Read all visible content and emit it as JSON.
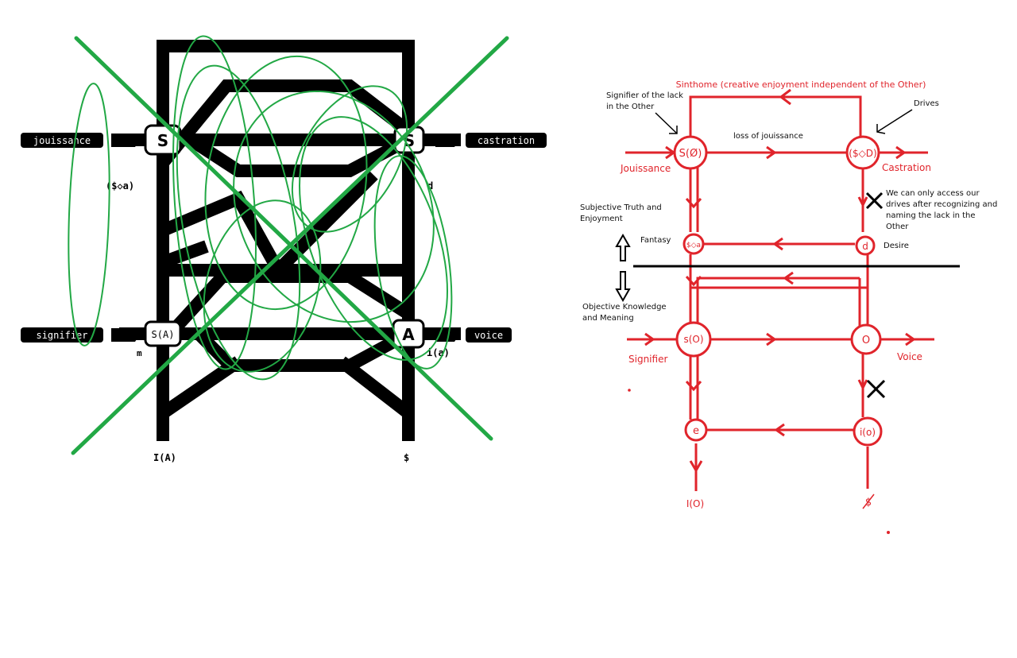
{
  "left_graph": {
    "labels": {
      "jouissance": "jouissance",
      "castration": "castration",
      "signifier": "signifier",
      "voice": "voice",
      "node_s_left": "S",
      "node_s_right": "S",
      "node_s_a": "S(A)",
      "node_a": "A",
      "fantasy_formula": "($◇a)",
      "d": "d",
      "m": "m",
      "i_a": "i(a)",
      "big_i_a": "I(A)",
      "barred_s": "$"
    }
  },
  "right_graph": {
    "sinthome": "Sinthome (creative enjoyment independent of the Other)",
    "signifier_of_lack": [
      "Signifier of the lack",
      "in the Other"
    ],
    "drives": "Drives",
    "loss_of_jouissance": "loss of jouissance",
    "node_s_barred_o": "S(Ø)",
    "node_drive_formula": "($◇D)",
    "jouissance": "Jouissance",
    "castration": "Castration",
    "drives_note": [
      "We can only access our",
      "drives after recognizing and",
      "naming the lack in the",
      "Other"
    ],
    "subjective": [
      "Subjective Truth and",
      "Enjoyment"
    ],
    "fantasy": "Fantasy",
    "node_fantasy": "$◇a",
    "node_d": "d",
    "desire": "Desire",
    "objective": [
      "Objective Knowledge",
      "and Meaning"
    ],
    "node_s_o": "s(O)",
    "node_o": "O",
    "signifier": "Signifier",
    "voice": "Voice",
    "node_e": "e",
    "node_i_o": "i(o)",
    "big_i_o": "I(O)",
    "barred_s": "$"
  },
  "colors": {
    "red": "#e0242b",
    "green": "#22a845",
    "black": "#000000"
  }
}
